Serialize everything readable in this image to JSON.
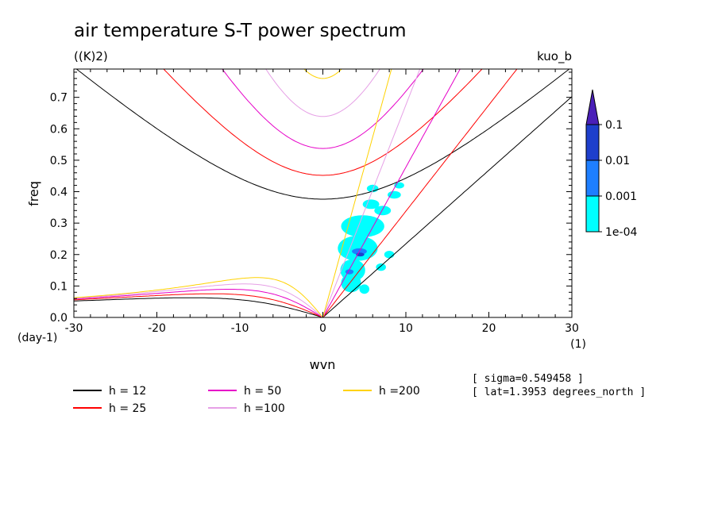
{
  "chart_data": {
    "type": "contour",
    "title": "air temperature S-T power spectrum",
    "units": "((K)2)",
    "tag": "kuo_b",
    "xlabel": "wvn",
    "ylabel": "freq",
    "x_unit_label": "(1)",
    "y_unit_label": "(day-1)",
    "xlim": [
      -30,
      30
    ],
    "ylim": [
      0.0,
      0.79
    ],
    "xticks": [
      -30,
      -20,
      -10,
      0,
      10,
      20,
      30
    ],
    "xtick_labels": [
      "-30",
      "-20",
      "-10",
      "0",
      "10",
      "20",
      "30"
    ],
    "yticks": [
      0.0,
      0.1,
      0.2,
      0.3,
      0.4,
      0.5,
      0.6,
      0.7
    ],
    "ytick_labels": [
      "0.0",
      "0.1",
      "0.2",
      "0.3",
      "0.4",
      "0.5",
      "0.6",
      "0.7"
    ],
    "colorbar": {
      "labels": [
        "0.1",
        "0.01",
        "0.001",
        "1e-04"
      ],
      "colors": [
        "#4a1fb8",
        "#1e3fcc",
        "#1e7fff",
        "#00ffff"
      ]
    },
    "dispersion_curves": [
      {
        "label": "h = 12",
        "h": 12,
        "color": "#000000"
      },
      {
        "label": "h = 25",
        "h": 25,
        "color": "#ff0000"
      },
      {
        "label": "h = 50",
        "h": 50,
        "color": "#e600c8"
      },
      {
        "label": "h =100",
        "h": 100,
        "color": "#e6a0e6"
      },
      {
        "label": "h =200",
        "h": 200,
        "color": "#ffd200"
      }
    ],
    "power_blobs": [
      {
        "x": 4.8,
        "y": 0.29,
        "rx": 2.6,
        "ry": 0.035,
        "level": "1e-04"
      },
      {
        "x": 4.2,
        "y": 0.22,
        "rx": 2.4,
        "ry": 0.04,
        "level": "1e-04"
      },
      {
        "x": 3.6,
        "y": 0.15,
        "rx": 1.5,
        "ry": 0.035,
        "level": "1e-04"
      },
      {
        "x": 3.4,
        "y": 0.11,
        "rx": 1.2,
        "ry": 0.03,
        "level": "1e-04"
      },
      {
        "x": 5.8,
        "y": 0.36,
        "rx": 1.0,
        "ry": 0.015,
        "level": "1e-04"
      },
      {
        "x": 7.2,
        "y": 0.34,
        "rx": 1.0,
        "ry": 0.015,
        "level": "1e-04"
      },
      {
        "x": 8.6,
        "y": 0.39,
        "rx": 0.8,
        "ry": 0.012,
        "level": "1e-04"
      },
      {
        "x": 6.0,
        "y": 0.41,
        "rx": 0.7,
        "ry": 0.012,
        "level": "1e-04"
      },
      {
        "x": 9.2,
        "y": 0.42,
        "rx": 0.6,
        "ry": 0.01,
        "level": "1e-04"
      },
      {
        "x": 8.0,
        "y": 0.2,
        "rx": 0.6,
        "ry": 0.012,
        "level": "1e-04"
      },
      {
        "x": 7.0,
        "y": 0.16,
        "rx": 0.6,
        "ry": 0.012,
        "level": "1e-04"
      },
      {
        "x": 5.0,
        "y": 0.09,
        "rx": 0.6,
        "ry": 0.015,
        "level": "1e-04"
      },
      {
        "x": 4.4,
        "y": 0.21,
        "rx": 0.9,
        "ry": 0.01,
        "level": "0.001"
      },
      {
        "x": 3.2,
        "y": 0.145,
        "rx": 0.5,
        "ry": 0.008,
        "level": "0.001"
      },
      {
        "x": 4.5,
        "y": 0.2,
        "rx": 0.5,
        "ry": 0.006,
        "level": "0.01"
      }
    ],
    "info": [
      "[ sigma=0.549458 ]",
      "[ lat=1.3953 degrees_north ]"
    ]
  }
}
